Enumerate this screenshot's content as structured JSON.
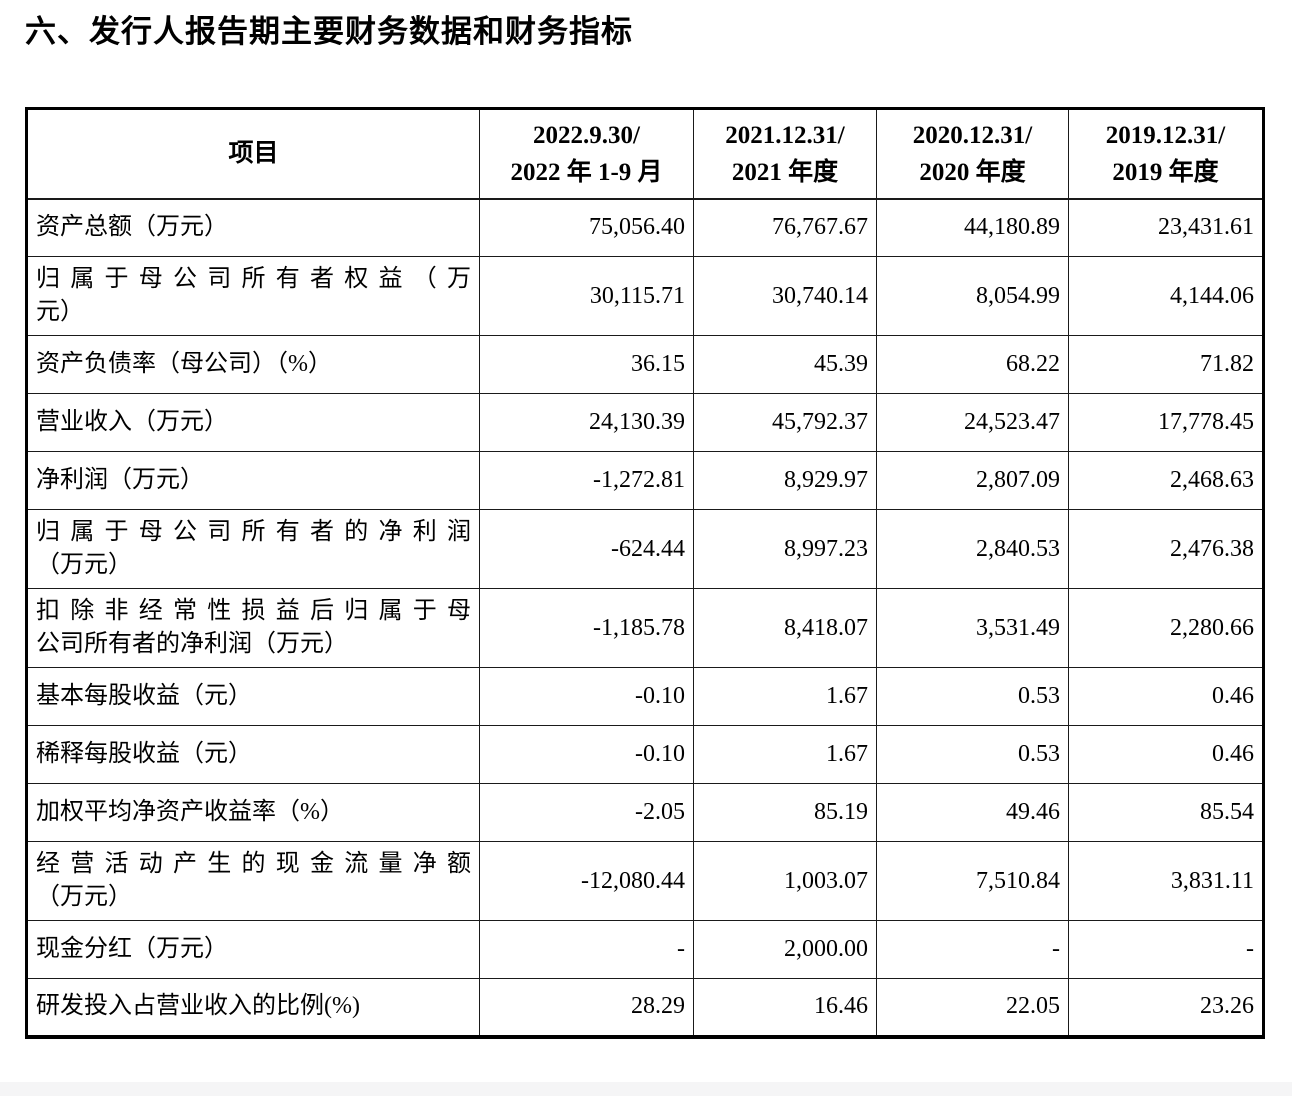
{
  "page": {
    "title": "六、发行人报告期主要财务数据和财务指标"
  },
  "table": {
    "columns": {
      "item": "项目",
      "periods": [
        {
          "date": "2022.9.30/",
          "period": "2022 年 1-9 月"
        },
        {
          "date": "2021.12.31/",
          "period": "2021 年度"
        },
        {
          "date": "2020.12.31/",
          "period": "2020 年度"
        },
        {
          "date": "2019.12.31/",
          "period": "2019 年度"
        }
      ]
    },
    "rows": [
      {
        "label_lines": [
          "资产总额（万元）"
        ],
        "values": [
          "75,056.40",
          "76,767.67",
          "44,180.89",
          "23,431.61"
        ]
      },
      {
        "label_lines": [
          "归属于母公司所有者权益（万",
          "元）"
        ],
        "values": [
          "30,115.71",
          "30,740.14",
          "8,054.99",
          "4,144.06"
        ]
      },
      {
        "label_lines": [
          "资产负债率（母公司）（%）"
        ],
        "values": [
          "36.15",
          "45.39",
          "68.22",
          "71.82"
        ]
      },
      {
        "label_lines": [
          "营业收入（万元）"
        ],
        "values": [
          "24,130.39",
          "45,792.37",
          "24,523.47",
          "17,778.45"
        ]
      },
      {
        "label_lines": [
          "净利润（万元）"
        ],
        "values": [
          "-1,272.81",
          "8,929.97",
          "2,807.09",
          "2,468.63"
        ]
      },
      {
        "label_lines": [
          "归属于母公司所有者的净利润",
          "（万元）"
        ],
        "values": [
          "-624.44",
          "8,997.23",
          "2,840.53",
          "2,476.38"
        ]
      },
      {
        "label_lines": [
          "扣除非经常性损益后归属于母",
          "公司所有者的净利润（万元）"
        ],
        "values": [
          "-1,185.78",
          "8,418.07",
          "3,531.49",
          "2,280.66"
        ]
      },
      {
        "label_lines": [
          "基本每股收益（元）"
        ],
        "values": [
          "-0.10",
          "1.67",
          "0.53",
          "0.46"
        ]
      },
      {
        "label_lines": [
          "稀释每股收益（元）"
        ],
        "values": [
          "-0.10",
          "1.67",
          "0.53",
          "0.46"
        ]
      },
      {
        "label_lines": [
          "加权平均净资产收益率（%）"
        ],
        "values": [
          "-2.05",
          "85.19",
          "49.46",
          "85.54"
        ]
      },
      {
        "label_lines": [
          "经营活动产生的现金流量净额",
          "（万元）"
        ],
        "values": [
          "-12,080.44",
          "1,003.07",
          "7,510.84",
          "3,831.11"
        ]
      },
      {
        "label_lines": [
          "现金分红（万元）"
        ],
        "values": [
          "-",
          "2,000.00",
          "-",
          "-"
        ]
      },
      {
        "label_lines": [
          "研发投入占营业收入的比例(%)"
        ],
        "values": [
          "28.29",
          "16.46",
          "22.05",
          "23.26"
        ]
      }
    ]
  }
}
